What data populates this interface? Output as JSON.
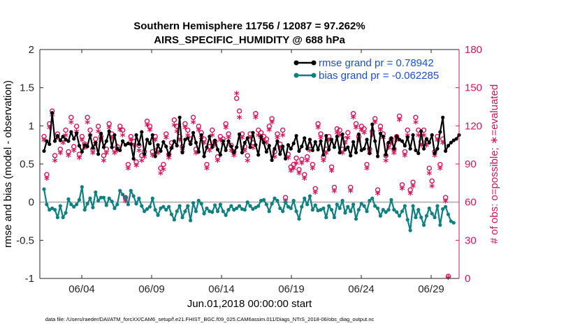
{
  "chart_data": {
    "type": "line",
    "title": "Southern Hemisphere 11756 / 12087 = 97.262%",
    "subtitle": "AIRS_SPECIFIC_HUMIDITY @ 688 hPa",
    "xlabel": "Jun.01,2018 00:00:00 start",
    "ylabel_left": "rmse and bias (model - observation)",
    "ylabel_right": "# of obs: o=possible; ∗=evaluated",
    "footer": "data file: /Users/raeder/DAI/ATM_forcXX/CAM6_setup/f.e21.FHIST_BGC.f09_025.CAM6assim.011/Diags_NTrS_2018-06/obs_diag_output.nc",
    "ylim_left": [
      -1,
      2
    ],
    "yticks_left": [
      "2",
      "1.5",
      "1",
      "0.5",
      "0",
      "-0.5",
      "-1"
    ],
    "ylim_right": [
      0,
      180
    ],
    "yticks_right": [
      "180",
      "150",
      "120",
      "90",
      "60",
      "30",
      "0"
    ],
    "xlim": [
      0,
      30
    ],
    "xticks": [
      {
        "value": 3,
        "label": "06/04"
      },
      {
        "value": 8,
        "label": "06/09"
      },
      {
        "value": 13,
        "label": "06/14"
      },
      {
        "value": 18,
        "label": "06/19"
      },
      {
        "value": 23,
        "label": "06/24"
      },
      {
        "value": 28,
        "label": "06/29"
      }
    ],
    "legend": {
      "rmse": "rmse grand pr = 0.78942",
      "bias": "bias grand pr = -0.062285",
      "placement": "top-right"
    },
    "colors": {
      "rmse": "#000000",
      "bias": "#0f8080",
      "obs": "#d4145a",
      "zero_line": "#bbbbbb"
    },
    "series": {
      "rmse": [
        0.67,
        0.8,
        0.76,
        1.17,
        0.8,
        0.87,
        0.81,
        0.86,
        0.82,
        0.8,
        0.92,
        0.83,
        0.9,
        0.74,
        0.66,
        0.75,
        0.73,
        0.88,
        0.71,
        0.78,
        0.63,
        0.9,
        0.72,
        0.8,
        0.93,
        0.72,
        0.88,
        0.7,
        0.68,
        0.8,
        0.75,
        0.77,
        0.76,
        0.57,
        0.88,
        0.76,
        0.92,
        0.63,
        0.82,
        0.77,
        0.88,
        0.6,
        0.75,
        0.67,
        0.79,
        0.73,
        0.62,
        0.71,
        0.8,
        0.74,
        1.11,
        0.65,
        0.82,
        0.84,
        0.76,
        0.91,
        0.78,
        0.66,
        0.88,
        0.6,
        0.72,
        0.86,
        0.72,
        0.81,
        0.69,
        0.62,
        0.8,
        0.68,
        0.8,
        0.73,
        0.65,
        0.72,
        0.89,
        0.65,
        0.78,
        0.84,
        0.72,
        0.91,
        0.75,
        0.62,
        0.86,
        0.78,
        0.66,
        0.74,
        0.55,
        0.7,
        0.8,
        0.63,
        0.73,
        0.57,
        0.75,
        0.7,
        0.77,
        0.87,
        0.67,
        0.73,
        0.84,
        0.7,
        0.82,
        0.68,
        0.79,
        0.69,
        0.8,
        0.62,
        0.87,
        0.69,
        0.82,
        0.72,
        0.86,
        0.65,
        0.89,
        0.69,
        0.72,
        0.61,
        0.79,
        0.65,
        0.89,
        0.68,
        0.7,
        0.82,
        0.64,
        1.02,
        0.8,
        0.6,
        0.9,
        0.86,
        0.62,
        0.78,
        0.84,
        0.7,
        0.86,
        0.82,
        0.8,
        0.74,
        0.85,
        0.7,
        0.88,
        0.68,
        0.64,
        0.93,
        0.7,
        0.83,
        0.78,
        0.88,
        0.64,
        0.7,
        0.92,
        1.11,
        0.67,
        0.74,
        0.78,
        0.81,
        0.83,
        0.88
      ],
      "bias": [
        0.17,
        -0.03,
        -0.1,
        -0.08,
        -0.1,
        -0.2,
        -0.05,
        -0.2,
        -0.14,
        0.04,
        -0.03,
        -0.06,
        -0.03,
        0.03,
        0.2,
        -0.1,
        -0.02,
        0.05,
        -0.07,
        0.13,
        0.02,
        0.06,
        0.06,
        -0.04,
        0.05,
        0.01,
        -0.08,
        -0.03,
        0.15,
        0.1,
        0.06,
        -0.03,
        0.15,
        0.08,
        -0.02,
        0.05,
        -0.05,
        -0.12,
        -0.09,
        -0.06,
        0.05,
        -0.1,
        -0.17,
        -0.08,
        -0.06,
        -0.1,
        -0.06,
        -0.16,
        -0.23,
        -0.12,
        -0.05,
        -0.2,
        -0.12,
        -0.05,
        -0.24,
        -0.01,
        -0.12,
        0.02,
        -0.02,
        -0.15,
        -0.08,
        -0.12,
        -0.13,
        -0.04,
        -0.12,
        -0.03,
        -0.12,
        -0.17,
        -0.1,
        -0.05,
        -0.1,
        -0.08,
        -0.05,
        -0.09,
        -0.1,
        0.0,
        -0.05,
        -0.09,
        -0.07,
        -0.05,
        0.02,
        0.03,
        -0.03,
        -0.12,
        -0.02,
        0.05,
        0.02,
        -0.08,
        -0.12,
        0.0,
        -0.06,
        -0.08,
        0.02,
        -0.12,
        -0.22,
        -0.06,
        0.05,
        -0.03,
        0.08,
        -0.1,
        -0.04,
        -0.11,
        -0.1,
        -0.08,
        -0.2,
        -0.05,
        -0.1,
        -0.2,
        -0.03,
        -0.08,
        0.02,
        -0.14,
        -0.06,
        -0.12,
        -0.03,
        -0.22,
        -0.1,
        -0.02,
        -0.05,
        -0.12,
        0.02,
        0.05,
        -0.05,
        -0.08,
        -0.18,
        -0.1,
        -0.13,
        -0.1,
        0.03,
        -0.1,
        -0.13,
        -0.18,
        -0.12,
        -0.05,
        -0.23,
        -0.37,
        -0.05,
        -0.2,
        -0.1,
        -0.2,
        -0.3,
        -0.18,
        -0.08,
        -0.15,
        -0.2,
        -0.05,
        -0.3,
        -0.09,
        -0.06,
        -0.16,
        -0.25,
        -0.27
      ],
      "obs_possible": [
        110,
        80,
        120,
        130,
        95,
        112,
        100,
        108,
        115,
        98,
        125,
        102,
        118,
        96,
        110,
        104,
        125,
        115,
        100,
        108,
        118,
        110,
        95,
        100,
        120,
        112,
        100,
        102,
        118,
        115,
        62,
        88,
        110,
        106,
        90,
        103,
        95,
        98,
        122,
        118,
        98,
        110,
        100,
        85,
        88,
        112,
        96,
        105,
        123,
        118,
        110,
        102,
        120,
        115,
        108,
        125,
        100,
        118,
        113,
        108,
        88,
        102,
        115,
        106,
        94,
        110,
        108,
        120,
        112,
        103,
        98,
        140,
        130,
        112,
        102,
        95,
        112,
        105,
        128,
        115,
        113,
        110,
        108,
        118,
        124,
        98,
        112,
        104,
        115,
        62,
        96,
        86,
        88,
        93,
        84,
        92,
        80,
        94,
        103,
        88,
        69,
        120,
        112,
        94,
        100,
        110,
        86,
        70,
        116,
        115,
        100,
        108,
        113,
        70,
        128,
        120,
        110,
        118,
        116,
        88,
        100,
        114,
        124,
        68,
        118,
        112,
        95,
        104,
        108,
        100,
        110,
        126,
        72,
        98,
        115,
        68,
        74,
        125,
        115,
        106,
        115,
        106,
        85,
        75,
        98,
        110,
        88,
        108,
        62,
        0
      ],
      "obs_evaluated": [
        108,
        78,
        118,
        128,
        92,
        110,
        98,
        106,
        112,
        96,
        122,
        100,
        115,
        94,
        108,
        102,
        122,
        112,
        98,
        105,
        115,
        108,
        92,
        98,
        118,
        110,
        98,
        100,
        116,
        112,
        60,
        86,
        108,
        104,
        88,
        100,
        92,
        95,
        120,
        116,
        96,
        108,
        98,
        82,
        85,
        110,
        94,
        102,
        120,
        115,
        108,
        100,
        118,
        112,
        106,
        122,
        98,
        116,
        110,
        106,
        86,
        100,
        112,
        104,
        92,
        108,
        106,
        118,
        110,
        100,
        96,
        145,
        126,
        110,
        100,
        92,
        110,
        102,
        126,
        112,
        110,
        108,
        106,
        116,
        122,
        95,
        110,
        102,
        112,
        60,
        94,
        84,
        86,
        90,
        82,
        90,
        78,
        92,
        100,
        86,
        67,
        118,
        110,
        92,
        98,
        108,
        84,
        68,
        114,
        112,
        98,
        106,
        110,
        68,
        126,
        118,
        108,
        116,
        114,
        86,
        98,
        112,
        122,
        66,
        116,
        110,
        92,
        102,
        106,
        98,
        108,
        124,
        70,
        96,
        112,
        66,
        72,
        122,
        112,
        104,
        112,
        104,
        82,
        72,
        96,
        108,
        86,
        106,
        60,
        0
      ]
    }
  }
}
